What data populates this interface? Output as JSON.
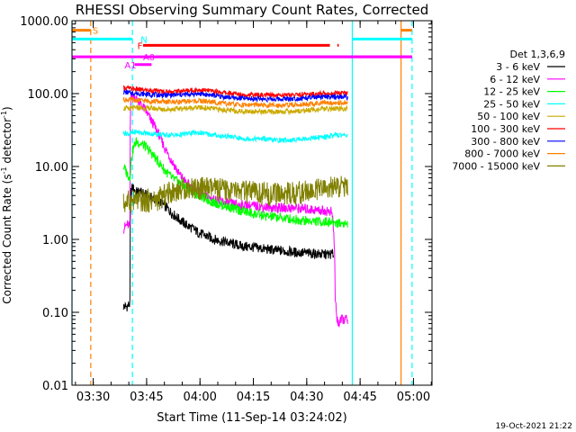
{
  "chart_data": {
    "type": "line",
    "title": "RHESSI Observing Summary Count Rates, Corrected",
    "xlabel": "Start Time (11-Sep-14 03:24:02)",
    "ylabel_main": "Corrected Count Rate (s",
    "ylabel_sup": "-1",
    "ylabel_tail": " detector",
    "ylabel_sup2": "-1",
    "ylabel_end": ")",
    "y_scale": "log",
    "ylim": [
      0.01,
      1000
    ],
    "xlim_minutes": [
      204.03,
      305.2
    ],
    "x_ticks": [
      {
        "label": "03:30",
        "t": 210
      },
      {
        "label": "03:45",
        "t": 225
      },
      {
        "label": "04:00",
        "t": 240
      },
      {
        "label": "04:15",
        "t": 255
      },
      {
        "label": "04:30",
        "t": 270
      },
      {
        "label": "04:45",
        "t": 285
      },
      {
        "label": "05:00",
        "t": 300
      }
    ],
    "y_ticks": [
      {
        "label": "1000.00",
        "v": 1000
      },
      {
        "label": "100.00",
        "v": 100
      },
      {
        "label": "10.00",
        "v": 10
      },
      {
        "label": "1.00",
        "v": 1
      },
      {
        "label": "0.10",
        "v": 0.1
      },
      {
        "label": "0.01",
        "v": 0.01
      }
    ],
    "legend_title": "Det 1,3,6,9",
    "legend_position": "right",
    "series": [
      {
        "name": "3 - 6 keV",
        "color": "#000000",
        "x": [
          218.5,
          219.5,
          220.3,
          220.6,
          221,
          222,
          224,
          225,
          226,
          228,
          230,
          232,
          234,
          236,
          238,
          240,
          242,
          244,
          246,
          248,
          250,
          252,
          255,
          258,
          261,
          264,
          267,
          270,
          273,
          276,
          277.5
        ],
        "y": [
          0.12,
          0.12,
          0.13,
          4.5,
          5.2,
          4.5,
          4.3,
          4.0,
          3.8,
          3.4,
          2.9,
          2.3,
          1.9,
          1.6,
          1.4,
          1.2,
          1.1,
          1.0,
          0.95,
          0.9,
          0.85,
          0.8,
          0.78,
          0.74,
          0.71,
          0.69,
          0.66,
          0.65,
          0.63,
          0.62,
          0.63
        ]
      },
      {
        "name": "6 - 12 keV",
        "color": "#ff00ff",
        "x": [
          218.5,
          219.5,
          220.3,
          220.6,
          221,
          222,
          224,
          226,
          228,
          230,
          232,
          234,
          236,
          238,
          240,
          242,
          244,
          246,
          248,
          250,
          254,
          258,
          262,
          266,
          270,
          274,
          277,
          277.6,
          278,
          278.5,
          279,
          280,
          281.5
        ],
        "y": [
          1.4,
          1.6,
          1.5,
          100,
          95,
          85,
          65,
          45,
          30,
          18,
          12,
          8,
          6,
          5,
          4.3,
          3.8,
          3.5,
          3.3,
          3.1,
          3.0,
          2.9,
          2.8,
          2.7,
          2.7,
          2.6,
          2.5,
          2.4,
          1.2,
          0.15,
          0.08,
          0.07,
          0.08,
          0.08
        ]
      },
      {
        "name": "12 - 25 keV",
        "color": "#00ff00",
        "x": [
          218.5,
          219.5,
          220.3,
          221,
          222,
          224,
          226,
          228,
          230,
          232,
          234,
          236,
          238,
          240,
          242,
          244,
          246,
          248,
          250,
          254,
          258,
          262,
          266,
          270,
          274,
          278,
          281.5
        ],
        "y": [
          10,
          8,
          7,
          16,
          22,
          20,
          16,
          12,
          9,
          7,
          6,
          5.2,
          4.5,
          4.0,
          3.5,
          3.2,
          3.0,
          2.8,
          2.6,
          2.3,
          2.1,
          2.0,
          1.9,
          1.8,
          1.75,
          1.7,
          1.65
        ]
      },
      {
        "name": "25 - 50 keV",
        "color": "#00ffff",
        "x": [
          218.5,
          220,
          222,
          224,
          226,
          228,
          230,
          232,
          234,
          236,
          238,
          240,
          242,
          244,
          246,
          248,
          250,
          252,
          254,
          256,
          258,
          260,
          262,
          264,
          266,
          268,
          270,
          272,
          274,
          276,
          278,
          280,
          281.5
        ],
        "y": [
          29,
          28,
          30,
          29,
          28,
          28,
          27,
          27,
          27,
          28,
          29,
          29,
          28,
          27,
          26,
          26,
          25,
          24,
          24,
          24,
          24,
          23,
          23,
          23,
          23,
          24,
          24,
          25,
          25,
          26,
          27,
          27,
          27
        ]
      },
      {
        "name": "50 - 100 keV",
        "color": "#ccaa00",
        "x": [
          218.5,
          220,
          222,
          224,
          226,
          228,
          230,
          232,
          234,
          236,
          238,
          240,
          242,
          244,
          246,
          248,
          250,
          252,
          254,
          256,
          258,
          260,
          262,
          264,
          266,
          268,
          270,
          272,
          274,
          276,
          278,
          280,
          281.5
        ],
        "y": [
          63,
          62,
          64,
          63,
          63,
          62,
          61,
          61,
          62,
          63,
          64,
          64,
          63,
          62,
          60,
          59,
          58,
          57,
          57,
          57,
          56,
          56,
          56,
          57,
          57,
          58,
          59,
          60,
          61,
          62,
          62,
          62,
          62
        ]
      },
      {
        "name": "100 - 300 keV",
        "color": "#ff0000",
        "x": [
          218.5,
          220,
          222,
          224,
          226,
          228,
          230,
          232,
          234,
          236,
          238,
          240,
          242,
          244,
          246,
          248,
          250,
          252,
          254,
          256,
          258,
          260,
          262,
          264,
          266,
          268,
          270,
          272,
          274,
          276,
          278,
          280,
          281.5
        ],
        "y": [
          120,
          118,
          115,
          112,
          110,
          108,
          106,
          106,
          108,
          110,
          112,
          112,
          110,
          107,
          104,
          101,
          99,
          97,
          96,
          96,
          95,
          95,
          95,
          96,
          96,
          97,
          98,
          99,
          100,
          101,
          102,
          101,
          100
        ]
      },
      {
        "name": "300 - 800 keV",
        "color": "#0000ff",
        "x": [
          218.5,
          220,
          222,
          224,
          226,
          228,
          230,
          232,
          234,
          236,
          238,
          240,
          242,
          244,
          246,
          248,
          250,
          252,
          254,
          256,
          258,
          260,
          262,
          264,
          266,
          268,
          270,
          272,
          274,
          276,
          278,
          280,
          281.5
        ],
        "y": [
          105,
          103,
          101,
          99,
          97,
          96,
          95,
          95,
          96,
          97,
          99,
          99,
          97,
          94,
          91,
          89,
          87,
          86,
          85,
          85,
          84,
          84,
          84,
          85,
          85,
          86,
          87,
          88,
          89,
          90,
          90,
          90,
          89
        ]
      },
      {
        "name": "800 - 7000 keV",
        "color": "#ff8000",
        "x": [
          218.5,
          220,
          222,
          224,
          226,
          228,
          230,
          232,
          234,
          236,
          238,
          240,
          242,
          244,
          246,
          248,
          250,
          252,
          254,
          256,
          258,
          260,
          262,
          264,
          266,
          268,
          270,
          272,
          274,
          276,
          278,
          280,
          281.5
        ],
        "y": [
          83,
          82,
          81,
          80,
          79,
          78,
          77,
          77,
          77,
          78,
          79,
          79,
          78,
          76,
          74,
          72,
          71,
          70,
          70,
          70,
          69,
          69,
          69,
          70,
          70,
          71,
          72,
          73,
          74,
          75,
          75,
          75,
          75
        ]
      },
      {
        "name": "7000 - 15000 keV",
        "color": "#808000",
        "x": [
          218.5,
          220,
          222,
          224,
          226,
          228,
          230,
          232,
          234,
          236,
          238,
          240,
          242,
          244,
          246,
          248,
          250,
          252,
          254,
          256,
          258,
          260,
          262,
          264,
          266,
          268,
          270,
          272,
          274,
          276,
          278,
          280,
          281.5
        ],
        "y": [
          3.1,
          3.3,
          3.4,
          3.3,
          3.4,
          3.5,
          4.0,
          4.5,
          4.8,
          5.0,
          5.1,
          5.0,
          5.0,
          4.9,
          4.8,
          4.7,
          4.6,
          4.5,
          4.4,
          4.3,
          4.2,
          4.2,
          4.2,
          4.2,
          4.3,
          4.4,
          4.5,
          4.6,
          4.8,
          5.0,
          5.2,
          5.3,
          5.3
        ]
      }
    ],
    "vertical_lines": [
      {
        "t": 204.03,
        "color": "#00ffff",
        "style": "solid"
      },
      {
        "t": 209.3,
        "color": "#ff8000",
        "style": "dashed"
      },
      {
        "t": 221.0,
        "color": "#00ffff",
        "style": "dashed"
      },
      {
        "t": 282.8,
        "color": "#00ffff",
        "style": "solid"
      },
      {
        "t": 296.5,
        "color": "#ff8000",
        "style": "solid"
      },
      {
        "t": 299.6,
        "color": "#00ffff",
        "style": "dashed"
      }
    ],
    "state_bars": [
      {
        "label": "S",
        "color": "#ff8000",
        "t0": 204.1,
        "t1": 209.3,
        "y": 740,
        "label_t": 209.8
      },
      {
        "label": "S",
        "color": "#ff8000",
        "t0": 296.5,
        "t1": 299.6,
        "y": 740,
        "label_t": null
      },
      {
        "label": "N",
        "color": "#00ffff",
        "t0": 204.1,
        "t1": 221.0,
        "y": 560,
        "label_t": 223.3
      },
      {
        "label": "N",
        "color": "#00ffff",
        "t0": 282.8,
        "t1": 299.6,
        "y": 560,
        "label_t": null
      },
      {
        "label": "F",
        "color": "#ff0000",
        "t0": 224.0,
        "t1": 276.5,
        "y": 460,
        "label_t": 222.4
      },
      {
        "label": "",
        "color": "#ff0000",
        "t0": 278.6,
        "t1": 279.0,
        "y": 460,
        "label_t": null
      },
      {
        "label": "",
        "color": "#ff00ff",
        "t0": 204.1,
        "t1": 299.6,
        "y": 320,
        "label_t": null
      },
      {
        "label": "A0",
        "color": "#ff00ff",
        "t0": 227.5,
        "t1": 299.6,
        "y": 320,
        "label_t": 224.0
      },
      {
        "label": "A1",
        "color": "#ff00ff",
        "t0": 221.6,
        "t1": 226.4,
        "y": 250,
        "label_t": 218.8
      }
    ]
  },
  "timestamp": "19-Oct-2021 21:22"
}
